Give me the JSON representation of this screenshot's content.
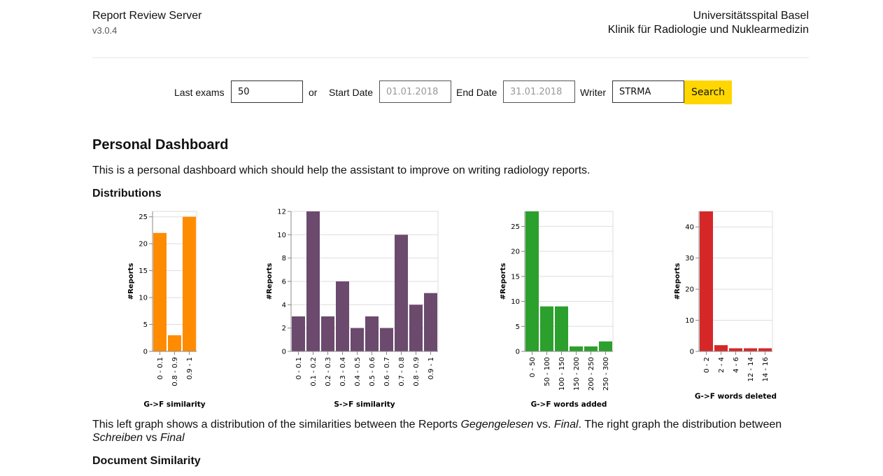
{
  "header": {
    "app_title": "Report Review Server",
    "version": "v3.0.4",
    "institution": "Universitätsspital Basel",
    "department": "Klinik für Radiologie und Nuklearmedizin"
  },
  "search": {
    "last_exams_label": "Last exams",
    "last_exams_value": "50",
    "or_label": "or",
    "start_date_label": "Start Date",
    "start_date_placeholder": "01.01.2018",
    "end_date_label": "End Date",
    "end_date_placeholder": "31.01.2018",
    "writer_label": "Writer",
    "writer_value": "STRMA",
    "search_button": "Search"
  },
  "main": {
    "title": "Personal Dashboard",
    "intro": "This is a personal dashboard which should help the assistant to improve on writing radiology reports.",
    "distributions_heading": "Distributions",
    "description_parts": [
      "This left graph shows a distribution of the similarities between the Reports ",
      "Gegengelesen",
      " vs. ",
      "Final",
      ". The right graph the distribution between ",
      "Schreiben",
      " vs ",
      "Final"
    ],
    "document_similarity_heading": "Document Similarity"
  },
  "chart_data": [
    {
      "type": "bar",
      "categories": [
        "0 - 0.1",
        "0.8 - 0.9",
        "0.9 - 1"
      ],
      "values": [
        22,
        3,
        25
      ],
      "xlabel": "G->F similarity",
      "ylabel": "#Reports",
      "ylim": [
        0,
        26
      ],
      "yticks": [
        0,
        5,
        10,
        15,
        20,
        25
      ],
      "color": "#ff8c00",
      "grid": true
    },
    {
      "type": "bar",
      "categories": [
        "0 - 0.1",
        "0.1 - 0.2",
        "0.2 - 0.3",
        "0.3 - 0.4",
        "0.4 - 0.5",
        "0.5 - 0.6",
        "0.6 - 0.7",
        "0.7 - 0.8",
        "0.8 - 0.9",
        "0.9 - 1"
      ],
      "values": [
        3,
        12,
        3,
        6,
        2,
        3,
        2,
        10,
        4,
        5
      ],
      "xlabel": "S->F similarity",
      "ylabel": "#Reports",
      "ylim": [
        0,
        12
      ],
      "yticks": [
        0,
        2,
        4,
        6,
        8,
        10,
        12
      ],
      "color": "#6b4a6e",
      "grid": true
    },
    {
      "type": "bar",
      "categories": [
        "0 - 50",
        "50 - 100",
        "100 - 150",
        "150 - 200",
        "200 - 250",
        "250 - 300"
      ],
      "values": [
        28,
        9,
        9,
        1,
        1,
        2
      ],
      "xlabel": "G->F words added",
      "ylabel": "#Reports",
      "ylim": [
        0,
        28
      ],
      "yticks": [
        0,
        5,
        10,
        15,
        20,
        25
      ],
      "color": "#2ca02c",
      "grid": true
    },
    {
      "type": "bar",
      "categories": [
        "0 - 2",
        "2 - 4",
        "4 - 6",
        "12 - 14",
        "14 - 16"
      ],
      "values": [
        45,
        2,
        1,
        1,
        1
      ],
      "xlabel": "G->F words deleted",
      "ylabel": "#Reports",
      "ylim": [
        0,
        45
      ],
      "yticks": [
        0,
        10,
        20,
        30,
        40
      ],
      "color": "#d62728",
      "grid": true
    }
  ]
}
